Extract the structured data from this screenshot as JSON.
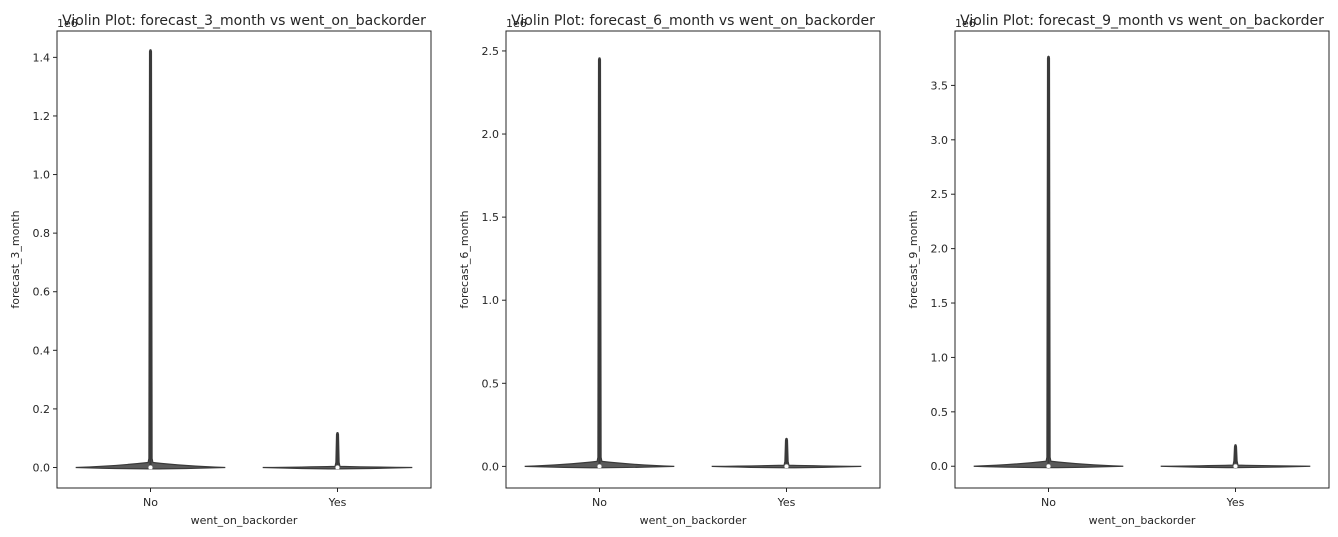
{
  "chart_data": [
    {
      "type": "violin",
      "title": "Violin Plot: forecast_3_month vs went_on_backorder",
      "xlabel": "went_on_backorder",
      "ylabel": "forecast_3_month",
      "offset_text": "1e6",
      "categories": [
        "No",
        "Yes"
      ],
      "ylim": [
        -0.07,
        1.49
      ],
      "yticks": [
        0.0,
        0.2,
        0.4,
        0.6,
        0.8,
        1.0,
        1.2,
        1.4
      ],
      "ytick_labels": [
        "0.0",
        "0.2",
        "0.4",
        "0.6",
        "0.8",
        "1.0",
        "1.2",
        "1.4"
      ],
      "series": [
        {
          "category": "No",
          "min": 0.0,
          "max": 1.427,
          "median": 0.0
        },
        {
          "category": "Yes",
          "min": 0.0,
          "max": 0.12,
          "median": 0.0
        }
      ],
      "grid": false
    },
    {
      "type": "violin",
      "title": "Violin Plot: forecast_6_month vs went_on_backorder",
      "xlabel": "went_on_backorder",
      "ylabel": "forecast_6_month",
      "offset_text": "1e6",
      "categories": [
        "No",
        "Yes"
      ],
      "ylim": [
        -0.13,
        2.62
      ],
      "yticks": [
        0.0,
        0.5,
        1.0,
        1.5,
        2.0,
        2.5
      ],
      "ytick_labels": [
        "0.0",
        "0.5",
        "1.0",
        "1.5",
        "2.0",
        "2.5"
      ],
      "series": [
        {
          "category": "No",
          "min": 0.0,
          "max": 2.46,
          "median": 0.0
        },
        {
          "category": "Yes",
          "min": 0.0,
          "max": 0.17,
          "median": 0.0
        }
      ],
      "grid": false
    },
    {
      "type": "violin",
      "title": "Violin Plot: forecast_9_month vs went_on_backorder",
      "xlabel": "went_on_backorder",
      "ylabel": "forecast_9_month",
      "offset_text": "1e6",
      "categories": [
        "No",
        "Yes"
      ],
      "ylim": [
        -0.2,
        4.0
      ],
      "yticks": [
        0.0,
        0.5,
        1.0,
        1.5,
        2.0,
        2.5,
        3.0,
        3.5
      ],
      "ytick_labels": [
        "0.0",
        "0.5",
        "1.0",
        "1.5",
        "2.0",
        "2.5",
        "3.0",
        "3.5"
      ],
      "series": [
        {
          "category": "No",
          "min": 0.0,
          "max": 3.77,
          "median": 0.0
        },
        {
          "category": "Yes",
          "min": 0.0,
          "max": 0.2,
          "median": 0.0
        }
      ],
      "grid": false
    }
  ],
  "colors": {
    "violin_fill": "#5a5a5a",
    "violin_edge": "#3a3a3a",
    "axis": "#262626",
    "median_marker": "#ffffff"
  }
}
